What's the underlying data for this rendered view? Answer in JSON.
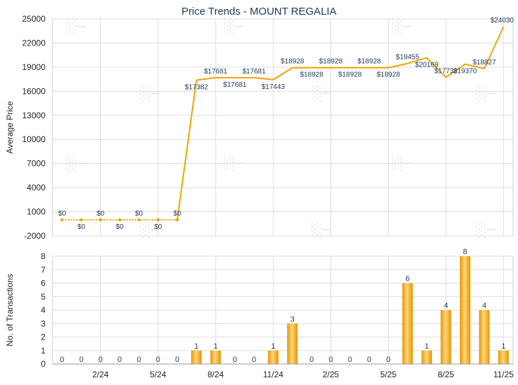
{
  "chart_data": [
    {
      "type": "line",
      "title": "Price Trends - MOUNT REGALIA",
      "ylabel": "Average Price",
      "ylim": [
        -2000,
        25000
      ],
      "yticks": [
        -2000,
        1000,
        4000,
        7000,
        10000,
        13000,
        16000,
        19000,
        22000,
        25000
      ],
      "grid": true,
      "color": "#f5a300",
      "points": [
        {
          "i": 1,
          "y": 0,
          "label": "$0"
        },
        {
          "i": 2,
          "y": 0,
          "label": "$0"
        },
        {
          "i": 3,
          "y": 0,
          "label": "$0"
        },
        {
          "i": 4,
          "y": 0,
          "label": "$0"
        },
        {
          "i": 5,
          "y": 0,
          "label": "$0"
        },
        {
          "i": 6,
          "y": 0,
          "label": "$0"
        },
        {
          "i": 7,
          "y": 0,
          "label": "$0"
        },
        {
          "i": 8,
          "y": 17382,
          "label": "$17382"
        },
        {
          "i": 9,
          "y": 17681,
          "label": "$17681"
        },
        {
          "i": 10,
          "y": 17681,
          "label": "$17681"
        },
        {
          "i": 11,
          "y": 17681,
          "label": "$17681"
        },
        {
          "i": 12,
          "y": 17443,
          "label": "$17443"
        },
        {
          "i": 13,
          "y": 18928,
          "label": "$18928"
        },
        {
          "i": 14,
          "y": 18928,
          "label": "$18928"
        },
        {
          "i": 15,
          "y": 18928,
          "label": "$18928"
        },
        {
          "i": 16,
          "y": 18928,
          "label": "$18928"
        },
        {
          "i": 17,
          "y": 18928,
          "label": "$18928"
        },
        {
          "i": 18,
          "y": 18928,
          "label": "$18928"
        },
        {
          "i": 19,
          "y": 19455,
          "label": "$19455"
        },
        {
          "i": 20,
          "y": 20169,
          "label": "$20169"
        },
        {
          "i": 21,
          "y": 17733,
          "label": "$17733"
        },
        {
          "i": 22,
          "y": 19370,
          "label": "$19370"
        },
        {
          "i": 23,
          "y": 18827,
          "label": "$18827"
        },
        {
          "i": 24,
          "y": 24030,
          "label": "$24030"
        }
      ]
    },
    {
      "type": "bar",
      "ylabel": "No. of Transactions",
      "ylim": [
        0,
        8
      ],
      "yticks": [
        0,
        1,
        2,
        3,
        4,
        5,
        6,
        7,
        8
      ],
      "grid": true,
      "color": "#f5a300",
      "x_ticks": [
        {
          "i": 3,
          "label": "2/24"
        },
        {
          "i": 6,
          "label": "5/24"
        },
        {
          "i": 9,
          "label": "8/24"
        },
        {
          "i": 12,
          "label": "11/24"
        },
        {
          "i": 15,
          "label": "2/25"
        },
        {
          "i": 18,
          "label": "5/25"
        },
        {
          "i": 21,
          "label": "8/25"
        },
        {
          "i": 24,
          "label": "11/25"
        }
      ],
      "values": [
        0,
        0,
        0,
        0,
        0,
        0,
        0,
        1,
        1,
        0,
        0,
        1,
        3,
        0,
        0,
        0,
        0,
        0,
        6,
        1,
        4,
        8,
        4,
        1
      ],
      "labels": [
        "0",
        "0",
        "0",
        "0",
        "0",
        "0",
        "0",
        "1",
        "1",
        "0",
        "0",
        "1",
        "3",
        "0",
        "0",
        "0",
        "0",
        "0",
        "6",
        "1",
        "4",
        "8",
        "4",
        "1"
      ]
    }
  ]
}
